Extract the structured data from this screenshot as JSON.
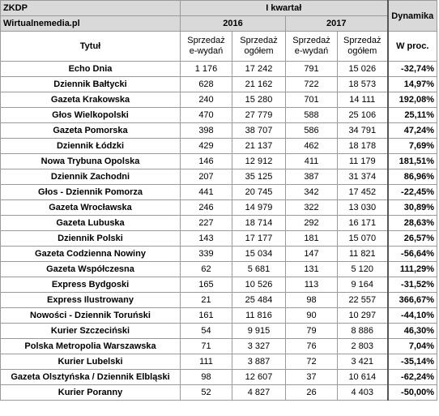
{
  "header": {
    "source": "ZKDP",
    "site": "Wirtualnemedia.pl",
    "period": "I kwartał",
    "year_a": "2016",
    "year_b": "2017",
    "dynamics": "Dynamika"
  },
  "columns": {
    "title": "Tytuł",
    "edition_sales": "Sprzedaż e-wydań",
    "total_sales": "Sprzedaż ogółem",
    "percent": "W proc."
  },
  "rows": [
    {
      "title": "Echo Dnia",
      "e2016": "1 176",
      "t2016": "17 242",
      "e2017": "791",
      "t2017": "15 026",
      "dyn": "-32,74%"
    },
    {
      "title": "Dziennik Bałtycki",
      "e2016": "628",
      "t2016": "21 162",
      "e2017": "722",
      "t2017": "18 573",
      "dyn": "14,97%"
    },
    {
      "title": "Gazeta Krakowska",
      "e2016": "240",
      "t2016": "15 280",
      "e2017": "701",
      "t2017": "14 111",
      "dyn": "192,08%"
    },
    {
      "title": "Głos Wielkopolski",
      "e2016": "470",
      "t2016": "27 779",
      "e2017": "588",
      "t2017": "25 106",
      "dyn": "25,11%"
    },
    {
      "title": "Gazeta Pomorska",
      "e2016": "398",
      "t2016": "38 707",
      "e2017": "586",
      "t2017": "34 791",
      "dyn": "47,24%"
    },
    {
      "title": "Dziennik Łódzki",
      "e2016": "429",
      "t2016": "21 137",
      "e2017": "462",
      "t2017": "18 178",
      "dyn": "7,69%"
    },
    {
      "title": "Nowa Trybuna Opolska",
      "e2016": "146",
      "t2016": "12 912",
      "e2017": "411",
      "t2017": "11 179",
      "dyn": "181,51%"
    },
    {
      "title": "Dziennik Zachodni",
      "e2016": "207",
      "t2016": "35 125",
      "e2017": "387",
      "t2017": "31 374",
      "dyn": "86,96%"
    },
    {
      "title": "Głos - Dziennik Pomorza",
      "e2016": "441",
      "t2016": "20 745",
      "e2017": "342",
      "t2017": "17 452",
      "dyn": "-22,45%"
    },
    {
      "title": "Gazeta Wrocławska",
      "e2016": "246",
      "t2016": "14 979",
      "e2017": "322",
      "t2017": "13 030",
      "dyn": "30,89%"
    },
    {
      "title": "Gazeta Lubuska",
      "e2016": "227",
      "t2016": "18 714",
      "e2017": "292",
      "t2017": "16 171",
      "dyn": "28,63%"
    },
    {
      "title": "Dziennik Polski",
      "e2016": "143",
      "t2016": "17 177",
      "e2017": "181",
      "t2017": "15 070",
      "dyn": "26,57%"
    },
    {
      "title": "Gazeta Codzienna Nowiny",
      "e2016": "339",
      "t2016": "15 034",
      "e2017": "147",
      "t2017": "11 821",
      "dyn": "-56,64%"
    },
    {
      "title": "Gazeta Współczesna",
      "e2016": "62",
      "t2016": "5 681",
      "e2017": "131",
      "t2017": "5 120",
      "dyn": "111,29%"
    },
    {
      "title": "Express Bydgoski",
      "e2016": "165",
      "t2016": "10 526",
      "e2017": "113",
      "t2017": "9 164",
      "dyn": "-31,52%"
    },
    {
      "title": "Express Ilustrowany",
      "e2016": "21",
      "t2016": "25 484",
      "e2017": "98",
      "t2017": "22 557",
      "dyn": "366,67%"
    },
    {
      "title": "Nowości - Dziennik Toruński",
      "e2016": "161",
      "t2016": "11 816",
      "e2017": "90",
      "t2017": "10 297",
      "dyn": "-44,10%"
    },
    {
      "title": "Kurier Szczeciński",
      "e2016": "54",
      "t2016": "9 915",
      "e2017": "79",
      "t2017": "8 886",
      "dyn": "46,30%"
    },
    {
      "title": "Polska Metropolia Warszawska",
      "e2016": "71",
      "t2016": "3 327",
      "e2017": "76",
      "t2017": "2 803",
      "dyn": "7,04%"
    },
    {
      "title": "Kurier Lubelski",
      "e2016": "111",
      "t2016": "3 887",
      "e2017": "72",
      "t2017": "3 421",
      "dyn": "-35,14%"
    },
    {
      "title": "Gazeta Olsztyńska / Dziennik Elbląski",
      "e2016": "98",
      "t2016": "12 607",
      "e2017": "37",
      "t2017": "10 614",
      "dyn": "-62,24%"
    },
    {
      "title": "Kurier Poranny",
      "e2016": "52",
      "t2016": "4 827",
      "e2017": "26",
      "t2017": "4 403",
      "dyn": "-50,00%"
    }
  ]
}
